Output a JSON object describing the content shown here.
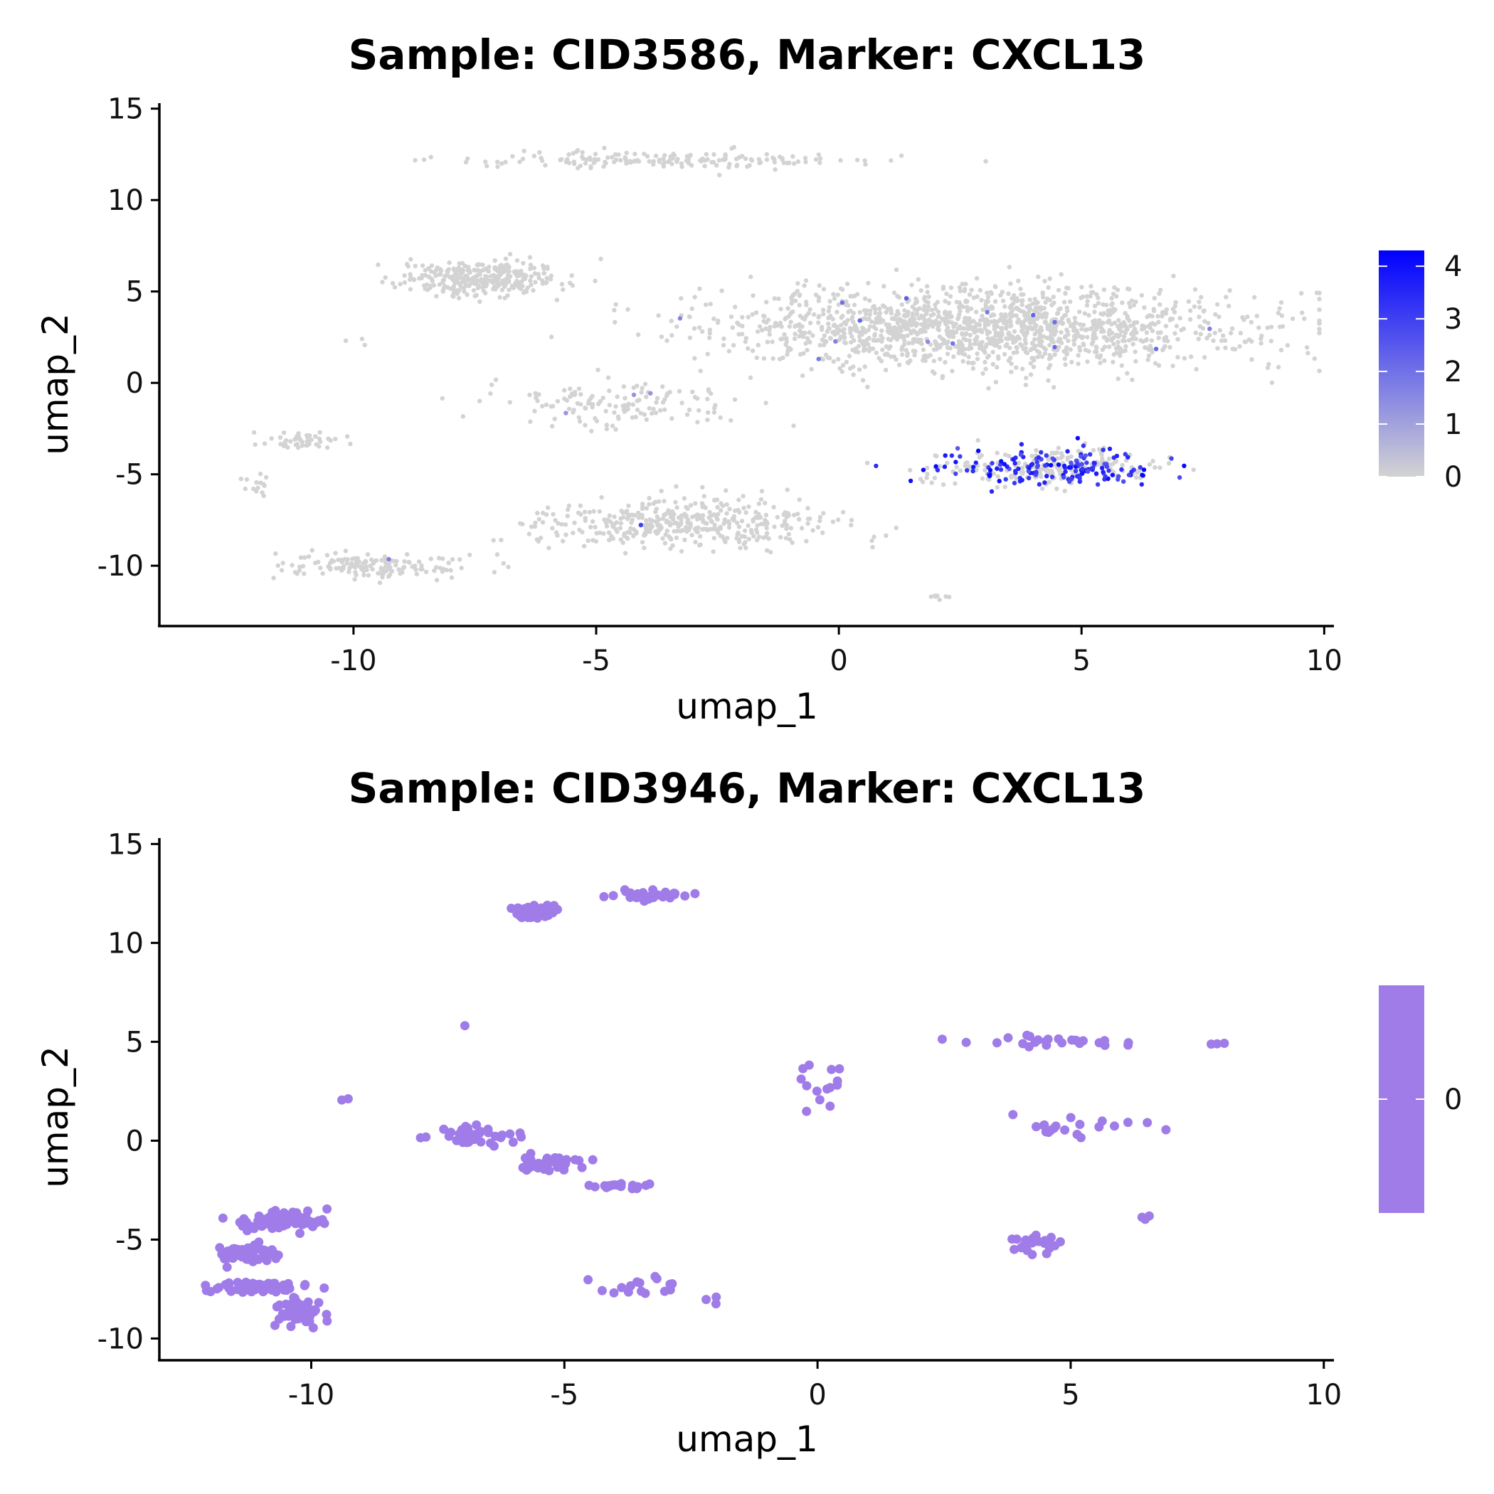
{
  "chart_data": [
    {
      "type": "scatter",
      "title": "Sample: CID3586, Marker: CXCL13",
      "xlabel": "umap_1",
      "ylabel": "umap_2",
      "xlim": [
        -14,
        10.2
      ],
      "ylim": [
        -13.3,
        15.3
      ],
      "xticks": [
        -10,
        -5,
        0,
        5,
        10
      ],
      "yticks": [
        -10,
        -5,
        0,
        5,
        10,
        15
      ],
      "grid": false,
      "legend": {
        "type": "colorbar",
        "placement": "right",
        "ticks": [
          0,
          1,
          2,
          3,
          4
        ],
        "range": [
          0,
          4.3
        ],
        "low_color": "#d3d3d3",
        "high_color": "#0000ff"
      },
      "point_size": "small",
      "clusters": [
        {
          "cx": 3.0,
          "cy": 3.0,
          "sx": 5.6,
          "sy": 2.2,
          "n": 1500,
          "expr_frac": 0.012,
          "expr_max": 2.5
        },
        {
          "cx": -3.5,
          "cy": 12.2,
          "sx": 4.0,
          "sy": 0.45,
          "n": 170,
          "expr_frac": 0.0,
          "expr_max": 0
        },
        {
          "cx": -7.4,
          "cy": 5.7,
          "sx": 1.6,
          "sy": 0.9,
          "n": 320,
          "expr_frac": 0.0,
          "expr_max": 0
        },
        {
          "cx": -4.6,
          "cy": -1.2,
          "sx": 2.7,
          "sy": 1.3,
          "n": 140,
          "expr_frac": 0.02,
          "expr_max": 2
        },
        {
          "cx": -11.0,
          "cy": -3.2,
          "sx": 1.0,
          "sy": 0.5,
          "n": 50,
          "expr_frac": 0.0,
          "expr_max": 0
        },
        {
          "cx": -12.0,
          "cy": -5.5,
          "sx": 0.4,
          "sy": 0.6,
          "n": 14,
          "expr_frac": 0.0,
          "expr_max": 0
        },
        {
          "cx": -9.5,
          "cy": -10.0,
          "sx": 2.0,
          "sy": 0.7,
          "n": 150,
          "expr_frac": 0.02,
          "expr_max": 1.8
        },
        {
          "cx": -3.2,
          "cy": -7.8,
          "sx": 3.0,
          "sy": 1.4,
          "n": 420,
          "expr_frac": 0.003,
          "expr_max": 4
        },
        {
          "cx": 4.4,
          "cy": -4.6,
          "sx": 2.3,
          "sy": 1.0,
          "n": 380,
          "expr_frac": 0.42,
          "expr_max": 4.2
        },
        {
          "cx": 2.0,
          "cy": -11.7,
          "sx": 0.3,
          "sy": 0.15,
          "n": 8,
          "expr_frac": 0.0,
          "expr_max": 0
        },
        {
          "cx": -10.2,
          "cy": 2.2,
          "sx": 0.7,
          "sy": 0.6,
          "n": 3,
          "expr_frac": 0.0,
          "expr_max": 0
        }
      ]
    },
    {
      "type": "scatter",
      "title": "Sample: CID3946, Marker: CXCL13",
      "xlabel": "umap_1",
      "ylabel": "umap_2",
      "xlim": [
        -13,
        10.2
      ],
      "ylim": [
        -11.1,
        15.3
      ],
      "xticks": [
        -10,
        -5,
        0,
        5,
        10
      ],
      "yticks": [
        -10,
        -5,
        0,
        5,
        10,
        15
      ],
      "grid": false,
      "legend": {
        "type": "colorbar",
        "placement": "right",
        "ticks": [
          0
        ],
        "color": "#a07ce8"
      },
      "point_color": "#a07ce8",
      "point_size": "large",
      "clusters": [
        {
          "cx": -5.6,
          "cy": 11.6,
          "sx": 0.4,
          "sy": 0.35,
          "n": 40
        },
        {
          "cx": -3.2,
          "cy": 12.4,
          "sx": 0.7,
          "sy": 0.25,
          "n": 30
        },
        {
          "cx": -6.8,
          "cy": 0.3,
          "sx": 0.8,
          "sy": 0.5,
          "n": 40
        },
        {
          "cx": -5.3,
          "cy": -1.2,
          "sx": 0.7,
          "sy": 0.35,
          "n": 45
        },
        {
          "cx": -3.9,
          "cy": -2.3,
          "sx": 0.6,
          "sy": 0.15,
          "n": 22
        },
        {
          "cx": -10.6,
          "cy": -4.0,
          "sx": 0.9,
          "sy": 0.45,
          "n": 95
        },
        {
          "cx": -11.3,
          "cy": -5.7,
          "sx": 0.6,
          "sy": 0.5,
          "n": 60
        },
        {
          "cx": -11.0,
          "cy": -7.4,
          "sx": 0.8,
          "sy": 0.3,
          "n": 60
        },
        {
          "cx": -10.2,
          "cy": -8.7,
          "sx": 0.5,
          "sy": 0.6,
          "n": 55
        },
        {
          "cx": -3.4,
          "cy": -7.2,
          "sx": 1.2,
          "sy": 0.8,
          "n": 16
        },
        {
          "cx": 4.3,
          "cy": -5.2,
          "sx": 0.6,
          "sy": 0.5,
          "n": 22
        },
        {
          "cx": 4.7,
          "cy": 5.0,
          "sx": 1.8,
          "sy": 0.4,
          "n": 26
        },
        {
          "cx": 5.4,
          "cy": 0.7,
          "sx": 1.5,
          "sy": 0.6,
          "n": 20
        },
        {
          "cx": 0.0,
          "cy": 3.0,
          "sx": 0.8,
          "sy": 1.5,
          "n": 14
        },
        {
          "cx": 8.0,
          "cy": 4.9,
          "sx": 0.2,
          "sy": 0.05,
          "n": 3
        },
        {
          "cx": 6.4,
          "cy": -3.9,
          "sx": 0.15,
          "sy": 0.15,
          "n": 3
        },
        {
          "cx": -9.5,
          "cy": 2.05,
          "sx": 0.4,
          "sy": 0.2,
          "n": 2
        },
        {
          "cx": -7.0,
          "cy": 5.8,
          "sx": 0.05,
          "sy": 0.05,
          "n": 1
        },
        {
          "cx": -2.0,
          "cy": -8.2,
          "sx": 0.2,
          "sy": 0.6,
          "n": 3
        }
      ]
    }
  ]
}
